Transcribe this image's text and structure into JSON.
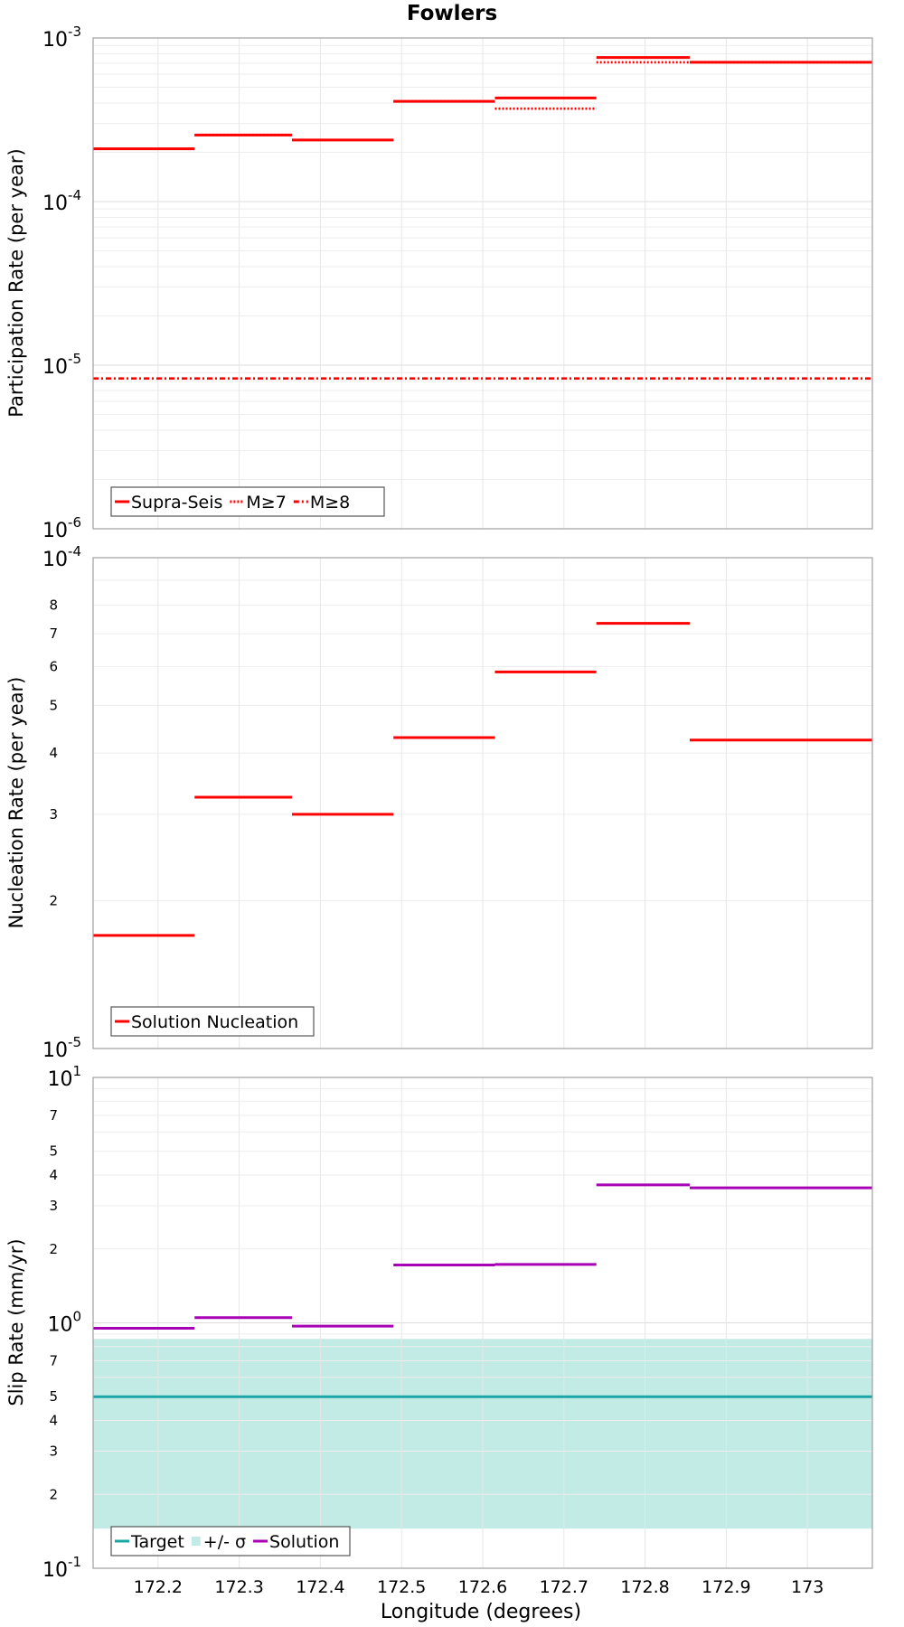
{
  "chart_data": [
    {
      "type": "line",
      "title": "Fowlers",
      "ylabel": "Participation Rate (per year)",
      "xlabel": "",
      "yscale": "log",
      "ylim": [
        1e-06,
        0.001
      ],
      "xlim": [
        172.12,
        173.08
      ],
      "grid": true,
      "legend_position": "bottom-left",
      "y_major_ticks": [
        {
          "value": 1e-06,
          "base": "10",
          "exp": "-6"
        },
        {
          "value": 1e-05,
          "base": "10",
          "exp": "-5"
        },
        {
          "value": 0.0001,
          "base": "10",
          "exp": "-4"
        },
        {
          "value": 0.001,
          "base": "10",
          "exp": "-3"
        }
      ],
      "series": [
        {
          "name": "Supra-Seis",
          "color": "#ff0000",
          "style": "solid",
          "segments": [
            [
              172.12,
              172.245,
              0.00021
            ],
            [
              172.245,
              172.365,
              0.000255
            ],
            [
              172.365,
              172.49,
              0.000238
            ],
            [
              172.49,
              172.615,
              0.00041
            ],
            [
              172.615,
              172.74,
              0.00043
            ],
            [
              172.74,
              172.855,
              0.00076
            ],
            [
              172.855,
              173.08,
              0.00071
            ]
          ]
        },
        {
          "name": "M≥7",
          "color": "#ff0000",
          "style": "dotted",
          "segments": [
            [
              172.12,
              172.245,
              0.00021
            ],
            [
              172.245,
              172.365,
              0.000255
            ],
            [
              172.365,
              172.49,
              0.000238
            ],
            [
              172.49,
              172.615,
              0.00041
            ],
            [
              172.615,
              172.74,
              0.00037
            ],
            [
              172.74,
              172.855,
              0.00071
            ],
            [
              172.855,
              173.08,
              0.00071
            ]
          ]
        },
        {
          "name": "M≥8",
          "color": "#ff0000",
          "style": "dashdot",
          "segments": [
            [
              172.12,
              173.08,
              8.3e-06
            ]
          ]
        }
      ]
    },
    {
      "type": "line",
      "ylabel": "Nucleation Rate (per year)",
      "xlabel": "",
      "yscale": "log",
      "ylim": [
        1e-05,
        0.0001
      ],
      "xlim": [
        172.12,
        173.08
      ],
      "grid": true,
      "legend_position": "bottom-left",
      "y_major_ticks": [
        {
          "value": 1e-05,
          "base": "10",
          "exp": "-5"
        },
        {
          "value": 0.0001,
          "base": "10",
          "exp": "-4"
        }
      ],
      "y_minor_labels": [
        "2",
        "3",
        "4",
        "5",
        "6",
        "7",
        "8"
      ],
      "series": [
        {
          "name": "Solution Nucleation",
          "color": "#ff0000",
          "style": "solid",
          "segments": [
            [
              172.12,
              172.245,
              1.7e-05
            ],
            [
              172.245,
              172.365,
              3.25e-05
            ],
            [
              172.365,
              172.49,
              3e-05
            ],
            [
              172.49,
              172.615,
              4.3e-05
            ],
            [
              172.615,
              172.74,
              5.85e-05
            ],
            [
              172.74,
              172.855,
              7.35e-05
            ],
            [
              172.855,
              173.08,
              4.25e-05
            ]
          ]
        }
      ]
    },
    {
      "type": "line",
      "ylabel": "Slip Rate (mm/yr)",
      "xlabel": "Longitude (degrees)",
      "yscale": "log",
      "ylim": [
        0.1,
        10
      ],
      "xlim": [
        172.12,
        173.08
      ],
      "grid": true,
      "legend_position": "bottom-left",
      "x_ticks": [
        "172.2",
        "172.3",
        "172.4",
        "172.5",
        "172.6",
        "172.7",
        "172.8",
        "172.9",
        "173"
      ],
      "y_major_ticks": [
        {
          "value": 0.1,
          "base": "10",
          "exp": "-1"
        },
        {
          "value": 1,
          "base": "10",
          "exp": "0"
        },
        {
          "value": 10,
          "base": "10",
          "exp": "1"
        }
      ],
      "y_minor_labels_low": [
        "2",
        "3",
        "4",
        "5",
        "7"
      ],
      "y_minor_labels_high": [
        "2",
        "3",
        "4",
        "5",
        "7"
      ],
      "band": {
        "name": "+/- σ",
        "color": "#c2ebe6",
        "low": 0.145,
        "high": 0.86
      },
      "series": [
        {
          "name": "Target",
          "color": "#1aa6a6",
          "style": "solid",
          "segments": [
            [
              172.12,
              173.08,
              0.5
            ]
          ]
        },
        {
          "name": "Solution",
          "color": "#a800b5",
          "style": "solid",
          "segments": [
            [
              172.12,
              172.245,
              0.95
            ],
            [
              172.245,
              172.365,
              1.05
            ],
            [
              172.365,
              172.49,
              0.97
            ],
            [
              172.49,
              172.615,
              1.72
            ],
            [
              172.615,
              172.74,
              1.73
            ],
            [
              172.74,
              172.855,
              3.65
            ],
            [
              172.855,
              173.08,
              3.55
            ]
          ]
        }
      ]
    }
  ]
}
